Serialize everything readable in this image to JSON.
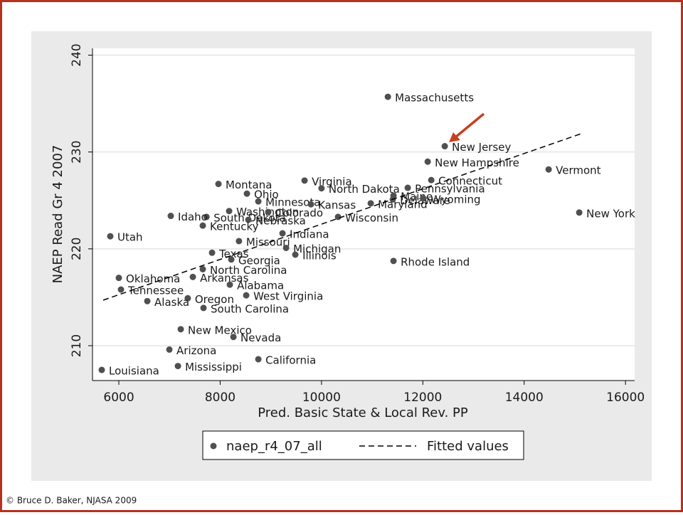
{
  "chart_data": {
    "type": "scatter",
    "xlabel": "Pred. Basic State & Local Rev. PP",
    "ylabel": "NAEP Read Gr 4 2007",
    "xlim": [
      5480,
      16180
    ],
    "ylim": [
      206.4,
      240.7
    ],
    "xticks": [
      6000,
      8000,
      10000,
      12000,
      14000,
      16000
    ],
    "yticks": [
      210,
      220,
      230,
      240
    ],
    "grid": true,
    "series": [
      {
        "name": "naep_r4_07_all",
        "type": "scatter",
        "color": "#505050",
        "labels": [
          "Massachusetts",
          "New Jersey",
          "New Hampshire",
          "Vermont",
          "Connecticut",
          "Pennsylvania",
          "Maine",
          "Delaware",
          "Wyoming",
          "Maryland",
          "New York",
          "Wisconsin",
          "Rhode Island",
          "North Dakota",
          "Virginia",
          "Montana",
          "Ohio",
          "Minnesota",
          "Kansas",
          "Washington",
          "Colorado",
          "South Dakota",
          "Idaho",
          "Nebraska",
          "Kentucky",
          "Indiana",
          "Missouri",
          "Michigan",
          "Illinois",
          "Texas",
          "Georgia",
          "Utah",
          "North Carolina",
          "Oklahoma",
          "Arkansas",
          "Alabama",
          "Tennessee",
          "West Virginia",
          "Oregon",
          "Alaska",
          "South Carolina",
          "New Mexico",
          "Nevada",
          "Arizona",
          "California",
          "Mississippi",
          "Louisiana"
        ],
        "x": [
          11310,
          12433,
          12096,
          14483,
          12166,
          11702,
          11421,
          11407,
          12011,
          10972,
          15087,
          10326,
          11421,
          10000,
          9666,
          7966,
          8528,
          8753,
          9792,
          8177,
          8949,
          7730,
          7025,
          8556,
          7657,
          9230,
          8371,
          9301,
          9483,
          7840,
          8219,
          5831,
          7657,
          6000,
          7461,
          8191,
          6042,
          8514,
          7360,
          6562,
          7671,
          7222,
          8261,
          6997,
          8753,
          7166,
          5663
        ],
        "values": [
          235.7,
          230.6,
          229.0,
          228.2,
          227.1,
          226.3,
          225.5,
          225.1,
          225.2,
          224.7,
          223.75,
          223.3,
          218.75,
          226.25,
          227.05,
          226.7,
          225.7,
          224.9,
          224.6,
          223.9,
          223.8,
          223.3,
          223.4,
          223.0,
          222.4,
          221.6,
          220.8,
          220.1,
          219.4,
          219.6,
          218.9,
          221.3,
          217.9,
          217.0,
          217.1,
          216.3,
          215.8,
          215.2,
          214.9,
          214.6,
          213.9,
          211.7,
          210.9,
          209.6,
          208.6,
          207.9,
          207.5
        ]
      },
      {
        "name": "Fitted values",
        "type": "line",
        "color": "#000000",
        "dash": "8,5",
        "x": [
          5691,
          15129
        ],
        "values": [
          214.7,
          231.9
        ]
      }
    ]
  },
  "footer": "© Bruce D. Baker, NJASA 2009"
}
